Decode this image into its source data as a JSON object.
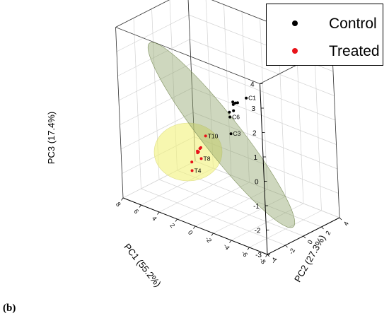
{
  "figure": {
    "panel_label": "(b)"
  },
  "legend": {
    "entries": [
      {
        "label": "Control",
        "color": "#000000"
      },
      {
        "label": "Treated",
        "color": "#e8131a"
      }
    ]
  },
  "colors": {
    "control_ellipse": "#8aa063",
    "treated_ellipse": "#f2f279",
    "grid": "#d3d3d3",
    "box": "#333333"
  },
  "chart_data": {
    "type": "scatter",
    "dimensions": 3,
    "xlabel": "PC1 (55.2%)",
    "ylabel": "PC2 (27.3%)",
    "zlabel": "PC3 (17.4%)",
    "xlim": [
      -8,
      8
    ],
    "ylim": [
      -4,
      4
    ],
    "zlim": [
      -3,
      4
    ],
    "x_ticks": [
      "-8",
      "-6",
      "-4",
      "-2",
      "0",
      "2",
      "4",
      "6",
      "8"
    ],
    "y_ticks": [
      "-4",
      "-2",
      "0",
      "2",
      "4"
    ],
    "z_ticks": [
      "-3",
      "-2",
      "-1",
      "0",
      "1",
      "2",
      "3",
      "4"
    ],
    "grid": true,
    "legend_position": "top-right",
    "series": [
      {
        "name": "Control",
        "points": [
          {
            "x": -1.6,
            "y": 0.6,
            "z": 1.62,
            "label": "C1"
          },
          {
            "x": -0.5,
            "y": 0.7,
            "z": 1.25,
            "label": ""
          },
          {
            "x": -0.1,
            "y": 0.85,
            "z": 1.15,
            "label": ""
          },
          {
            "x": 0.1,
            "y": 0.8,
            "z": 1.07,
            "label": ""
          },
          {
            "x": 0.35,
            "y": 1.0,
            "z": 1.1,
            "label": ""
          },
          {
            "x": 0.0,
            "y": 0.7,
            "z": 0.85,
            "label": ""
          },
          {
            "x": 1.3,
            "y": 1.5,
            "z": 0.45,
            "label": ""
          },
          {
            "x": 2.2,
            "y": 2.4,
            "z": -0.05,
            "label": "C6"
          },
          {
            "x": 3.0,
            "y": 3.2,
            "z": -1.0,
            "label": "C3"
          }
        ]
      },
      {
        "name": "Treated",
        "points": [
          {
            "x": 1.4,
            "y": -1.1,
            "z": -0.05,
            "label": "T10"
          },
          {
            "x": 1.9,
            "y": -1.3,
            "z": -0.6,
            "label": ""
          },
          {
            "x": 2.1,
            "y": -1.0,
            "z": -0.65,
            "label": ""
          },
          {
            "x": 2.3,
            "y": -1.2,
            "z": -0.78,
            "label": ""
          },
          {
            "x": 2.6,
            "y": -0.9,
            "z": -0.95,
            "label": ""
          },
          {
            "x": 2.8,
            "y": -0.6,
            "z": -1.0,
            "label": ""
          },
          {
            "x": 3.5,
            "y": -0.7,
            "z": -1.5,
            "label": ""
          },
          {
            "x": 1.9,
            "y": -1.2,
            "z": -1.03,
            "label": "T8"
          },
          {
            "x": 3.2,
            "y": -1.0,
            "z": -1.75,
            "label": "T4"
          }
        ]
      }
    ]
  }
}
